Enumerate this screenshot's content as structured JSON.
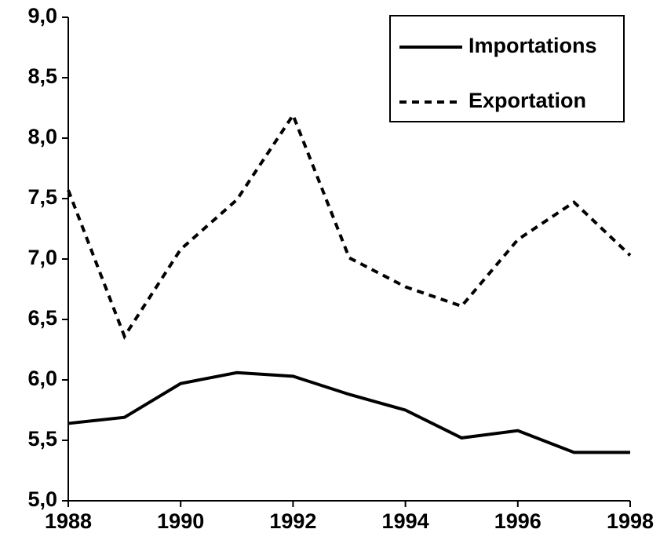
{
  "chart_data": {
    "type": "line",
    "x": [
      1988,
      1989,
      1990,
      1991,
      1992,
      1993,
      1994,
      1995,
      1996,
      1997,
      1998
    ],
    "series": [
      {
        "name": "Importations",
        "color": "#000000",
        "style": "solid",
        "values": [
          5.64,
          5.69,
          5.97,
          6.06,
          6.03,
          5.88,
          5.75,
          5.52,
          5.58,
          5.4,
          5.4
        ]
      },
      {
        "name": "Exportation",
        "color": "#000000",
        "style": "dashed",
        "values": [
          7.57,
          6.36,
          7.08,
          7.49,
          8.19,
          7.01,
          6.77,
          6.61,
          7.16,
          7.47,
          7.03
        ]
      }
    ],
    "xlim": [
      1988,
      1998
    ],
    "xticks": [
      1988,
      1990,
      1992,
      1994,
      1996,
      1998
    ],
    "ylim": [
      5.0,
      9.0
    ],
    "yticks": [
      {
        "value": 5.0,
        "label": "5,0"
      },
      {
        "value": 5.5,
        "label": "5,5"
      },
      {
        "value": 6.0,
        "label": "6,0"
      },
      {
        "value": 6.5,
        "label": "6,5"
      },
      {
        "value": 7.0,
        "label": "7,0"
      },
      {
        "value": 7.5,
        "label": "7,5"
      },
      {
        "value": 8.0,
        "label": "8,0"
      },
      {
        "value": 8.5,
        "label": "8,5"
      },
      {
        "value": 9.0,
        "label": "9,0"
      }
    ],
    "legend": "top-right",
    "grid": false
  }
}
